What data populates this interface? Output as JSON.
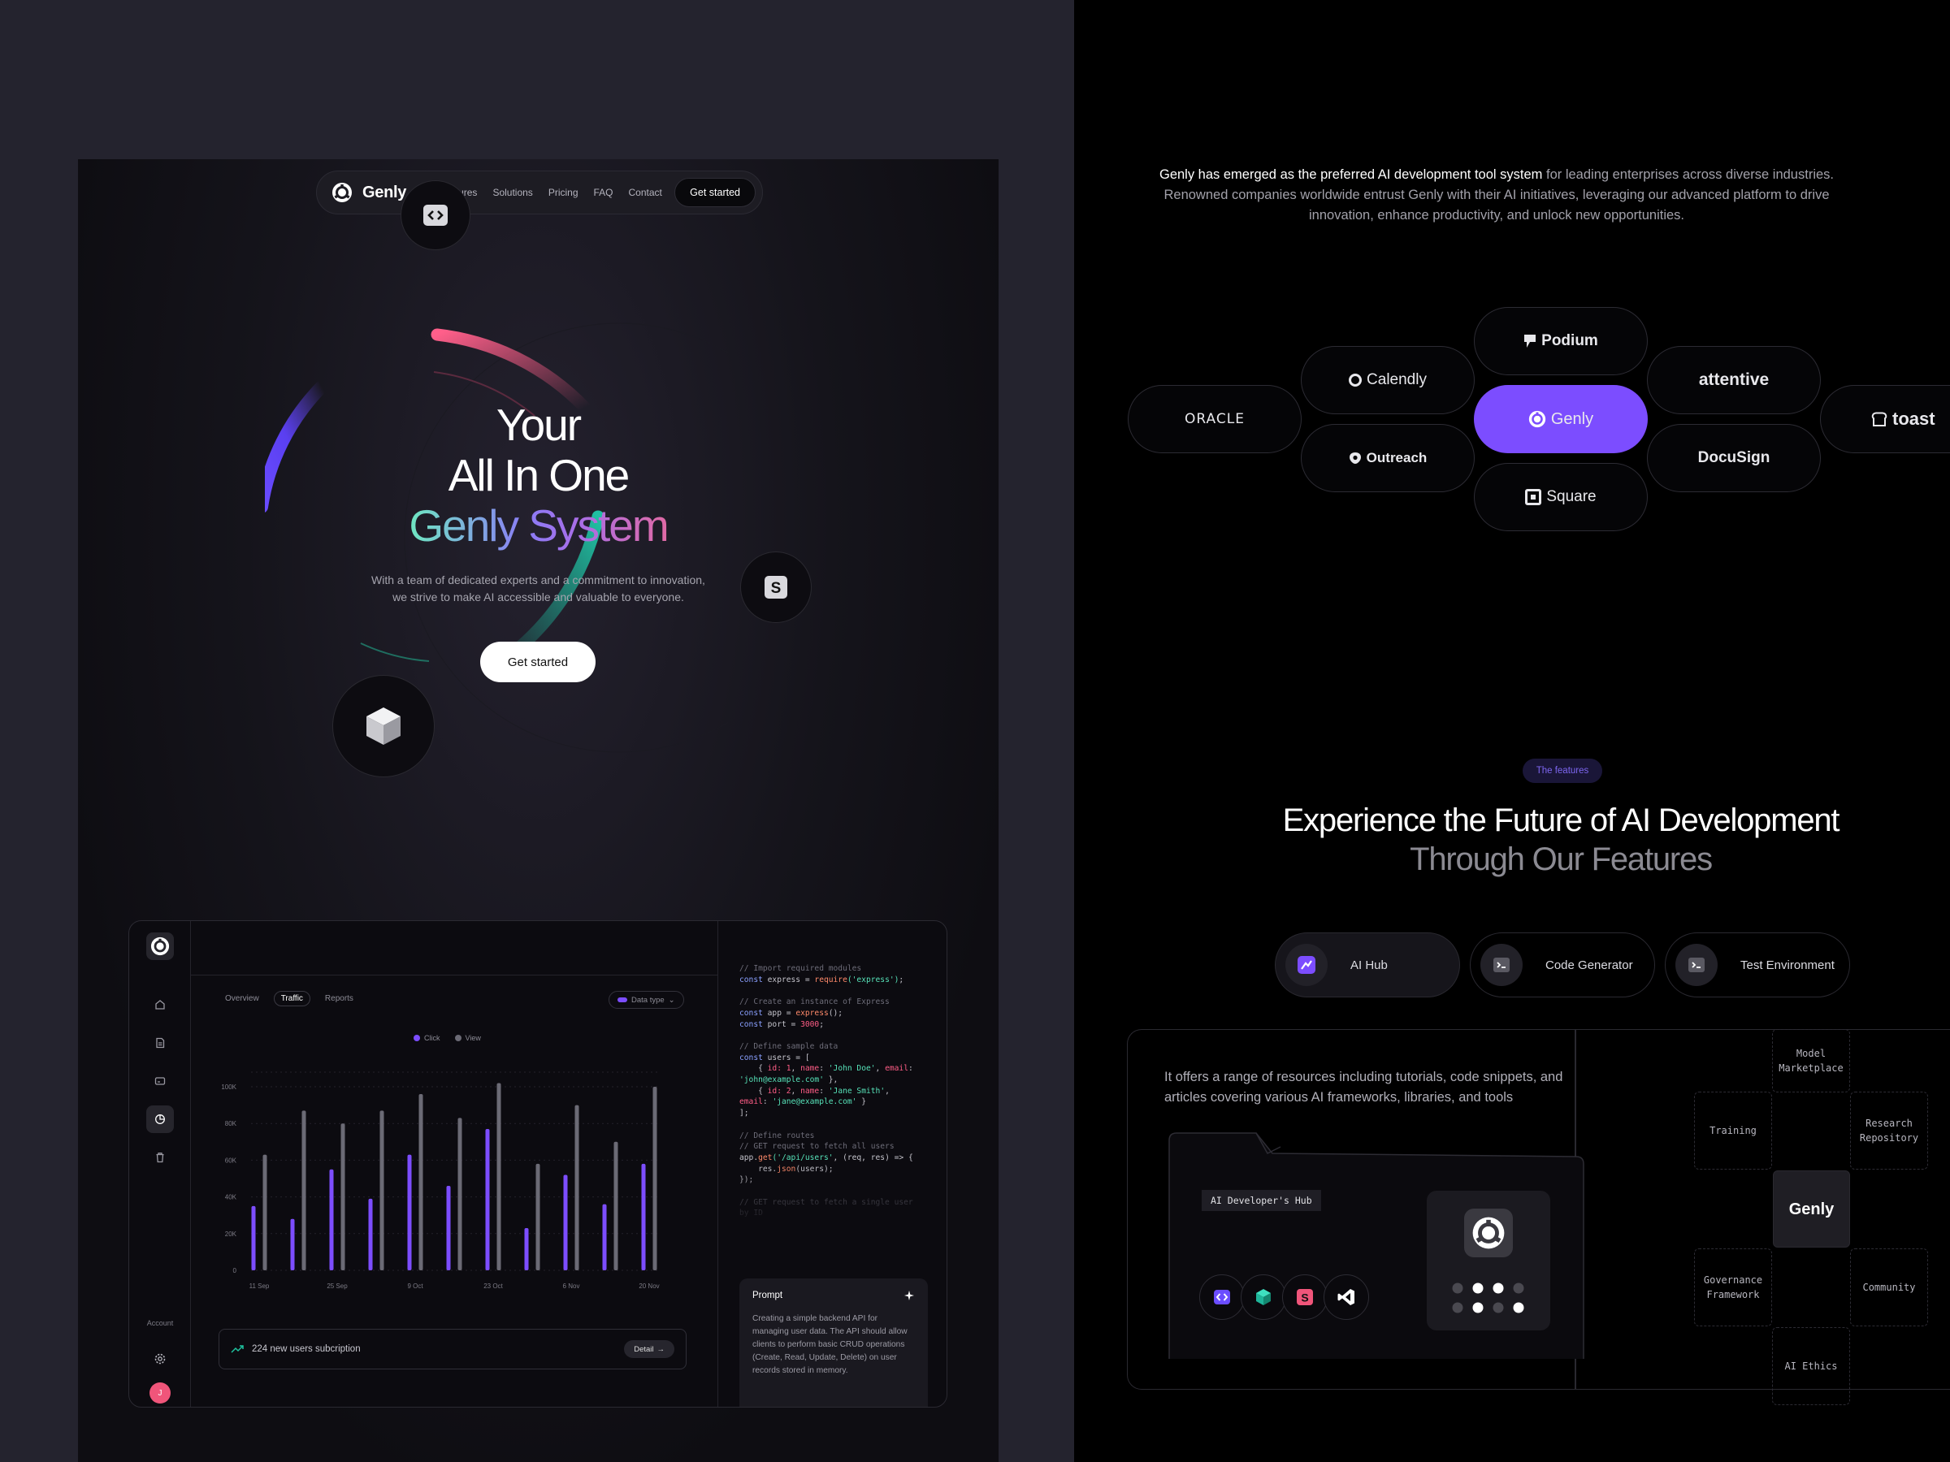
{
  "nav": {
    "brand": "Genly",
    "links": [
      "Features",
      "Solutions",
      "Pricing",
      "FAQ",
      "Contact"
    ],
    "cta": "Get started"
  },
  "hero": {
    "line1": "Your",
    "line2": "All In One",
    "line3": "Genly System",
    "description_1": "With a team of dedicated experts and a commitment to innovation,",
    "description_2": "we strive to make AI accessible and valuable to everyone.",
    "cta": "Get started",
    "icons": [
      "code-icon",
      "s-letter-icon",
      "cube-icon"
    ]
  },
  "dashboard": {
    "tabs": [
      "Overview",
      "Traffic",
      "Reports"
    ],
    "active_tab": "Traffic",
    "data_type": "Data type",
    "account_label": "Account",
    "avatar_initial": "J",
    "subscription_text": "224 new users subcription",
    "detail_button": "Detail",
    "prompt_title": "Prompt",
    "prompt_text": "Creating a simple backend API for managing user data. The API should allow clients to perform basic CRUD operations (Create, Read, Update, Delete) on user records stored in memory.",
    "code_lines": [
      [
        [
          "cm",
          "// Import required modules"
        ]
      ],
      [
        [
          "kw",
          "const "
        ],
        [
          "",
          "express = "
        ],
        [
          "fn",
          "require"
        ],
        [
          "st",
          "('express')"
        ],
        [
          "",
          ";"
        ]
      ],
      [
        [
          "",
          ""
        ]
      ],
      [
        [
          "cm",
          "// Create an instance of Express"
        ]
      ],
      [
        [
          "kw",
          "const "
        ],
        [
          "",
          "app = "
        ],
        [
          "fn",
          "express"
        ],
        [
          "",
          ""
        ],
        [
          "",
          "();"
        ]
      ],
      [
        [
          "kw",
          "const "
        ],
        [
          "",
          "port = "
        ],
        [
          "pr",
          "3000"
        ],
        [
          "",
          ";"
        ]
      ],
      [
        [
          "",
          ""
        ]
      ],
      [
        [
          "cm",
          "// Define sample data"
        ]
      ],
      [
        [
          "kw",
          "const "
        ],
        [
          "",
          "users = ["
        ]
      ],
      [
        [
          "",
          "    { "
        ],
        [
          "pr",
          "id: 1"
        ],
        [
          "",
          ", "
        ],
        [
          "pr",
          "name"
        ],
        [
          "",
          ": "
        ],
        [
          "st",
          "'John Doe'"
        ],
        [
          "",
          ", "
        ],
        [
          "pr",
          "email"
        ],
        [
          "",
          ":"
        ]
      ],
      [
        [
          "st",
          "'john@example.com'"
        ],
        [
          "",
          " },"
        ]
      ],
      [
        [
          "",
          "    { "
        ],
        [
          "pr",
          "id: 2"
        ],
        [
          "",
          ", "
        ],
        [
          "pr",
          "name"
        ],
        [
          "",
          ": "
        ],
        [
          "st",
          "'Jane Smith'"
        ],
        [
          "",
          ","
        ]
      ],
      [
        [
          "pr",
          "email"
        ],
        [
          "",
          ": "
        ],
        [
          "st",
          "'jane@example.com'"
        ],
        [
          "",
          " }"
        ]
      ],
      [
        [
          "",
          "];"
        ]
      ],
      [
        [
          "",
          ""
        ]
      ],
      [
        [
          "cm",
          "// Define routes"
        ]
      ],
      [
        [
          "cm",
          "// GET request to fetch all users"
        ]
      ],
      [
        [
          "",
          "app."
        ],
        [
          "fn",
          "get"
        ],
        [
          "",
          ""
        ],
        [
          "st",
          "('/api/users'"
        ],
        [
          "",
          ", (req, res) => {"
        ]
      ],
      [
        [
          "",
          "    res."
        ],
        [
          "fn",
          "json"
        ],
        [
          "",
          "(users);"
        ]
      ],
      [
        [
          "",
          "});"
        ]
      ],
      [
        [
          "",
          ""
        ]
      ],
      [
        [
          "cm",
          "// GET request to fetch a single user"
        ]
      ],
      [
        [
          "cm",
          "by ID"
        ]
      ]
    ]
  },
  "chart_data": {
    "type": "bar",
    "categories": [
      "11 Sep",
      "",
      "25 Sep",
      "",
      "9 Oct",
      "",
      "23 Oct",
      "",
      "6 Nov",
      "",
      "20 Nov"
    ],
    "x_tick_labels": [
      "11 Sep",
      "25 Sep",
      "9 Oct",
      "23 Oct",
      "6 Nov",
      "20 Nov"
    ],
    "ylim": [
      0,
      100000
    ],
    "y_tick_labels": [
      "0",
      "20K",
      "40K",
      "60K",
      "80K",
      "100K"
    ],
    "legend": "top-center",
    "grid": true,
    "series": [
      {
        "name": "Click",
        "color": "#7c4dff",
        "values": [
          35000,
          28000,
          55000,
          39000,
          63000,
          46000,
          77000,
          23000,
          52000,
          36000,
          58000
        ]
      },
      {
        "name": "View",
        "color": "#6b6a75",
        "values": [
          63000,
          87000,
          80000,
          87000,
          96000,
          83000,
          102000,
          58000,
          90000,
          70000,
          100000
        ]
      }
    ]
  },
  "intro": {
    "lead": "Genly has emerged as the preferred AI development tool system",
    "rest": " for leading enterprises across diverse industries. Renowned companies worldwide entrust Genly with their AI initiatives, leveraging our advanced platform to drive innovation, enhance productivity, and unlock new opportunities."
  },
  "partners": [
    "ORACLE",
    "Calendly",
    "Outreach",
    "Podium",
    "Genly",
    "Square",
    "attentive",
    "DocuSign",
    "toast"
  ],
  "features": {
    "badge": "The features",
    "heading_1": "Experience the Future of AI Development",
    "heading_2": "Through Our Features",
    "tabs": [
      "AI Hub",
      "Code Generator",
      "Test Environment"
    ],
    "active_tab": "AI Hub",
    "description": "It offers a range of resources including tutorials, code snippets, and articles covering various AI frameworks, libraries, and tools",
    "hub_label": "AI Developer's Hub",
    "nodes": {
      "model_marketplace": "Model\nMarketplace",
      "training": "Training",
      "research_repository": "Research\nRepository",
      "center": "Genly",
      "governance_framework": "Governance\nFramework",
      "community": "Community",
      "ai_ethics": "AI Ethics"
    }
  },
  "colors": {
    "accent_purple": "#7c4dff",
    "accent_teal": "#1fb59a",
    "accent_pink": "#f0557a"
  }
}
